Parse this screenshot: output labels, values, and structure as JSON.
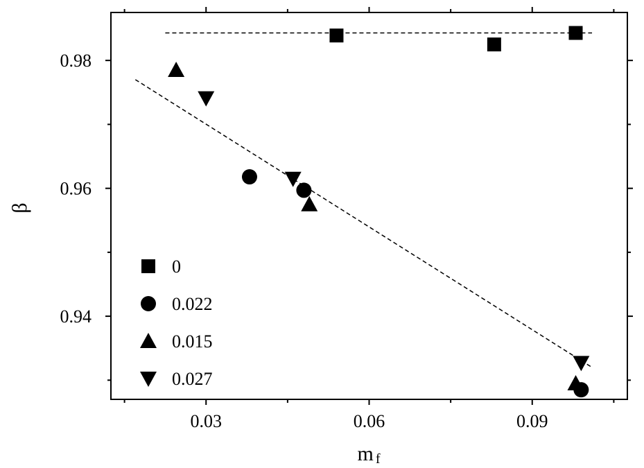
{
  "chart_data": {
    "type": "scatter",
    "title": "",
    "xlabel": "m",
    "xlabel_sub": "f",
    "ylabel": "β",
    "xlim": [
      0.0125,
      0.1075
    ],
    "ylim": [
      0.927,
      0.9875
    ],
    "xticks": [
      0.03,
      0.06,
      0.09
    ],
    "xtick_labels": [
      "0.03",
      "0.06",
      "0.09"
    ],
    "yticks": [
      0.94,
      0.96,
      0.98
    ],
    "ytick_labels": [
      "0.94",
      "0.96",
      "0.98"
    ],
    "grid": false,
    "legend_position": "bottom-left",
    "series": [
      {
        "name": "0",
        "marker": "square",
        "x": [
          0.054,
          0.083,
          0.098
        ],
        "y": [
          0.9839,
          0.9825,
          0.9843
        ]
      },
      {
        "name": "0.022",
        "marker": "circle",
        "x": [
          0.038,
          0.048,
          0.099
        ],
        "y": [
          0.9618,
          0.9597,
          0.9285
        ]
      },
      {
        "name": "0.015",
        "marker": "triangle-up",
        "x": [
          0.0245,
          0.049,
          0.098
        ],
        "y": [
          0.9785,
          0.9575,
          0.9295
        ]
      },
      {
        "name": "0.027",
        "marker": "triangle-down",
        "x": [
          0.03,
          0.046,
          0.099
        ],
        "y": [
          0.9741,
          0.9615,
          0.9327
        ]
      }
    ],
    "fit_lines": [
      {
        "style": "dashed",
        "x": [
          0.0225,
          0.101
        ],
        "y": [
          0.9843,
          0.9843
        ]
      },
      {
        "style": "dashed",
        "x": [
          0.017,
          0.101
        ],
        "y": [
          0.977,
          0.932
        ]
      }
    ]
  }
}
